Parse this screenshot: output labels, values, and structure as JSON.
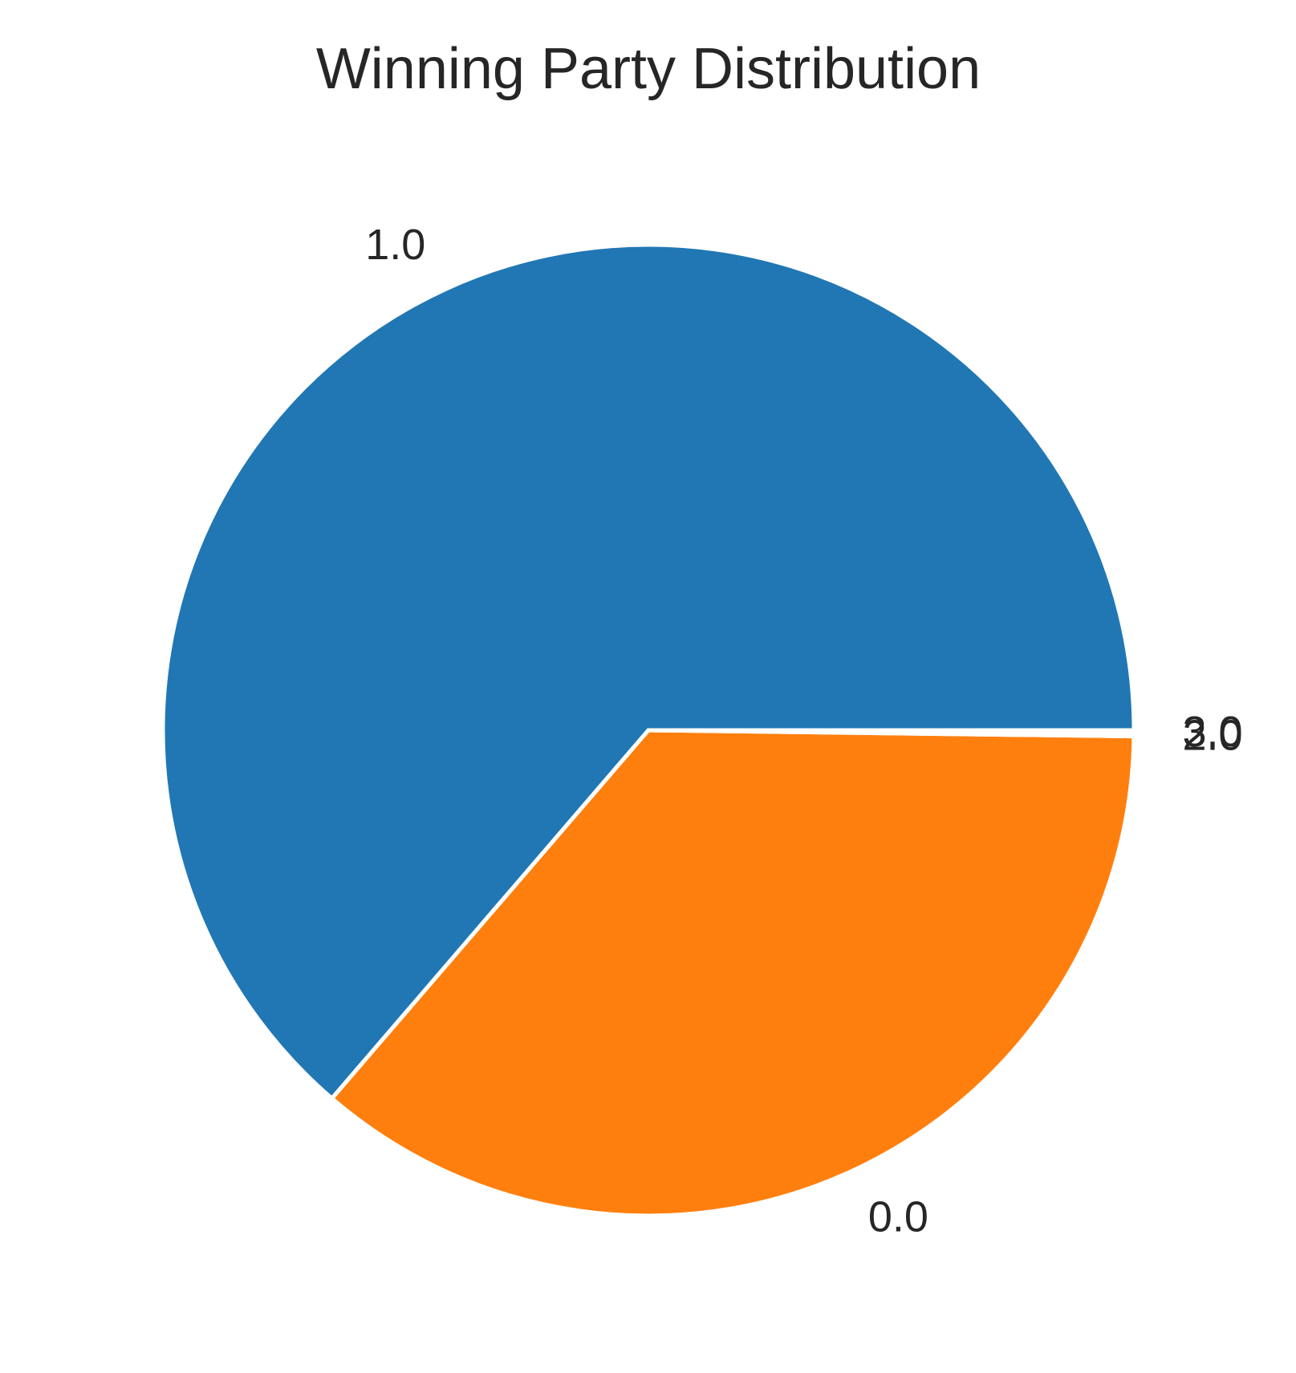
{
  "chart_data": {
    "type": "pie",
    "title": "Winning Party Distribution",
    "categories": [
      "1.0",
      "0.0",
      "2.0",
      "3.0"
    ],
    "values": [
      63.7,
      36.1,
      0.1,
      0.1
    ],
    "colors": [
      "#2077b4",
      "#ff7f0e",
      "#2ca02c",
      "#d62728"
    ],
    "start_angle": 0,
    "counterclockwise": true,
    "legend": "none"
  }
}
